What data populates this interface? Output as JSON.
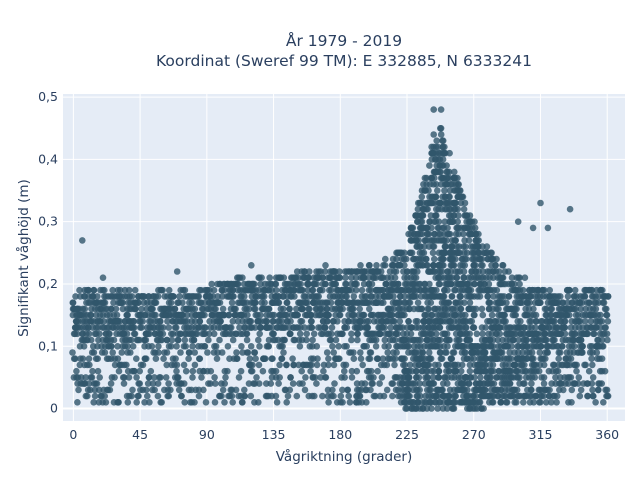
{
  "chart_data": {
    "type": "scatter",
    "title": "År 1979 - 2019",
    "subtitle": "Koordinat (Sweref 99 TM): E 332885, N 6333241",
    "xlabel": "Vågriktning (grader)",
    "ylabel": "Signifikant våghöjd (m)",
    "xlim": [
      -7,
      372
    ],
    "ylim": [
      -0.02,
      0.505
    ],
    "x_ticks": [
      0,
      45,
      90,
      135,
      180,
      225,
      270,
      315,
      360
    ],
    "x_tick_labels": [
      "0",
      "45",
      "90",
      "135",
      "180",
      "225",
      "270",
      "315",
      "360"
    ],
    "y_ticks": [
      0,
      0.1,
      0.2,
      0.3,
      0.4,
      0.5
    ],
    "y_tick_labels": [
      "0",
      "0,1",
      "0,2",
      "0,3",
      "0,4",
      "0,5"
    ],
    "grid": true,
    "background": "#e5ecf6",
    "marker_color": "#31566b",
    "dense_band": {
      "x": [
        0,
        20,
        45,
        60,
        85,
        90,
        110,
        135,
        160,
        180,
        200,
        215,
        225,
        232,
        238,
        242,
        247,
        252,
        258,
        265,
        275,
        290,
        310,
        330,
        345,
        360
      ],
      "y_upper": [
        0.19,
        0.19,
        0.19,
        0.19,
        0.19,
        0.2,
        0.21,
        0.21,
        0.22,
        0.22,
        0.23,
        0.24,
        0.27,
        0.33,
        0.38,
        0.43,
        0.46,
        0.42,
        0.38,
        0.33,
        0.27,
        0.23,
        0.2,
        0.19,
        0.19,
        0.19
      ],
      "y_lower": [
        0.1,
        0.1,
        0.11,
        0.11,
        0.11,
        0.12,
        0.12,
        0.12,
        0.12,
        0.12,
        0.11,
        0.11,
        0.0,
        0.0,
        0.0,
        0.0,
        0.0,
        0.0,
        0.0,
        0.02,
        0.03,
        0.04,
        0.06,
        0.08,
        0.1,
        0.1
      ],
      "sparse_lower": [
        0.01,
        0.01,
        0.01,
        0.01,
        0.01,
        0.01,
        0.01,
        0.01,
        0.01,
        0.01,
        0.01,
        0.01,
        0.0,
        0.0,
        0.0,
        0.0,
        0.0,
        0.0,
        0.0,
        0.0,
        0.0,
        0.01,
        0.01,
        0.01,
        0.01,
        0.01
      ]
    },
    "outliers": [
      {
        "x": 6,
        "y": 0.27
      },
      {
        "x": 315,
        "y": 0.33
      },
      {
        "x": 335,
        "y": 0.32
      },
      {
        "x": 243,
        "y": 0.48
      },
      {
        "x": 248,
        "y": 0.48
      },
      {
        "x": 300,
        "y": 0.3
      },
      {
        "x": 310,
        "y": 0.29
      },
      {
        "x": 320,
        "y": 0.29
      },
      {
        "x": 20,
        "y": 0.21
      },
      {
        "x": 70,
        "y": 0.22
      },
      {
        "x": 120,
        "y": 0.23
      },
      {
        "x": 170,
        "y": 0.23
      }
    ]
  }
}
